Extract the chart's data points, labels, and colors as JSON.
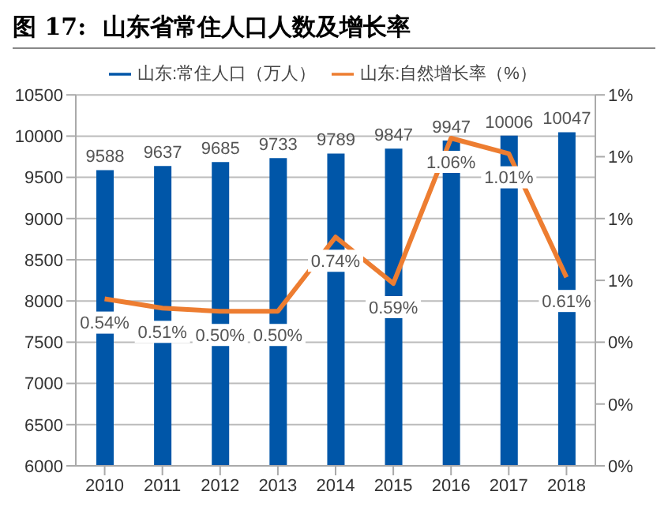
{
  "chart_data": {
    "type": "bar",
    "title": "图 17:  山东省常住人口人数及增长率",
    "categories": [
      "2010",
      "2011",
      "2012",
      "2013",
      "2014",
      "2015",
      "2016",
      "2017",
      "2018"
    ],
    "series": [
      {
        "name": "山东:常住人口（万人）",
        "color": "#0056a8",
        "values": [
          9588,
          9637,
          9685,
          9733,
          9789,
          9847,
          9947,
          10006,
          10047
        ],
        "value_labels": [
          "9588",
          "9637",
          "9685",
          "9733",
          "9789",
          "9847",
          "9947",
          "10006",
          "10047"
        ]
      },
      {
        "name": "山东:自然增长率（%）",
        "type": "line",
        "axis": "y2",
        "color": "#ed7d31",
        "values": [
          0.54,
          0.51,
          0.5,
          0.5,
          0.74,
          0.59,
          1.06,
          1.01,
          0.61
        ],
        "value_labels": [
          "0.54%",
          "0.51%",
          "0.50%",
          "0.50%",
          "0.74%",
          "0.59%",
          "1.06%",
          "1.01%",
          "0.61%"
        ]
      }
    ],
    "ylim": [
      6000,
      10500
    ],
    "yticks": [
      6000,
      6500,
      7000,
      7500,
      8000,
      8500,
      9000,
      9500,
      10000,
      10500
    ],
    "y2lim": [
      0,
      1.2
    ],
    "y2ticks": [
      {
        "value": 0,
        "label": "0%"
      },
      {
        "value": 0.2,
        "label": "0%"
      },
      {
        "value": 0.4,
        "label": "0%"
      },
      {
        "value": 0.6,
        "label": "1%"
      },
      {
        "value": 0.8,
        "label": "1%"
      },
      {
        "value": 1.0,
        "label": "1%"
      },
      {
        "value": 1.2,
        "label": "1%"
      }
    ],
    "grid": "y",
    "legend": "top",
    "marker": "none",
    "line_style": "solid"
  }
}
